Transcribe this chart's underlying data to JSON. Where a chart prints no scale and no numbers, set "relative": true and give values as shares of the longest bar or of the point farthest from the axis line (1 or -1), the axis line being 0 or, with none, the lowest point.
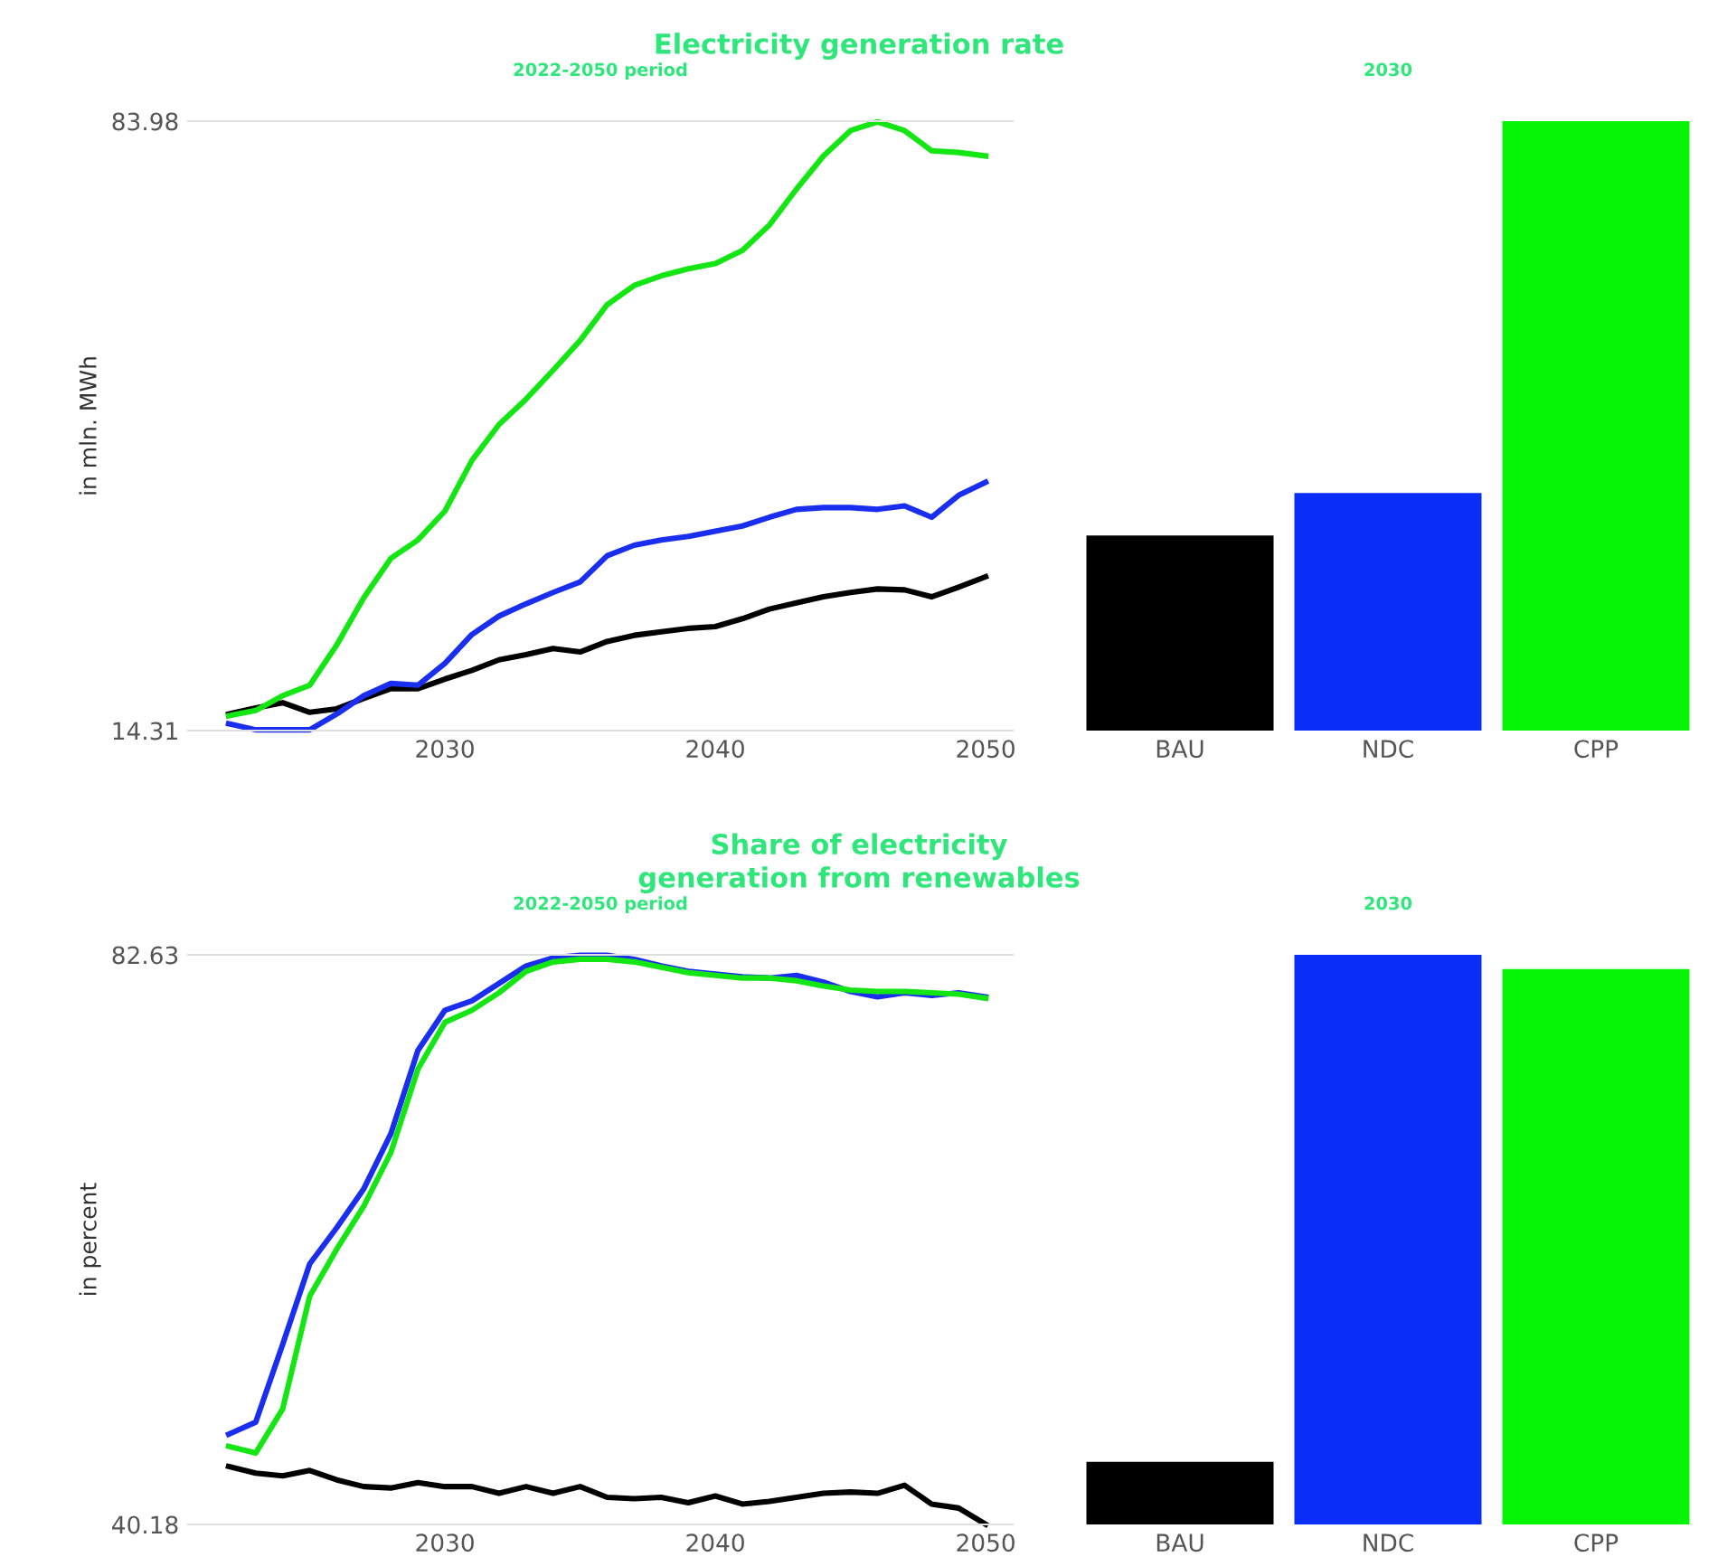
{
  "chart_data": [
    {
      "type": "line",
      "title": "Electricity generation rate",
      "subtitle": "2022-2050 period",
      "ylabel": "in mln. MWh",
      "x": [
        2022,
        2023,
        2024,
        2025,
        2026,
        2027,
        2028,
        2029,
        2030,
        2031,
        2032,
        2033,
        2034,
        2035,
        2036,
        2037,
        2038,
        2039,
        2040,
        2041,
        2042,
        2043,
        2044,
        2045,
        2046,
        2047,
        2048,
        2049,
        2050
      ],
      "xlim": [
        2020.5,
        2051
      ],
      "xticks": [
        2030,
        2040,
        2050
      ],
      "ylim": [
        14.31,
        83.98
      ],
      "yticks": [
        {
          "value": 14.31,
          "label": "14.31"
        },
        {
          "value": 83.98,
          "label": "83.98"
        }
      ],
      "series": [
        {
          "color": "#000000",
          "values": [
            16.2,
            16.9,
            17.5,
            16.4,
            16.8,
            18.0,
            19.1,
            19.1,
            20.2,
            21.2,
            22.4,
            23.0,
            23.7,
            23.3,
            24.5,
            25.2,
            25.6,
            26.0,
            26.2,
            27.1,
            28.2,
            28.9,
            29.6,
            30.1,
            30.5,
            30.4,
            29.6,
            30.7,
            31.9
          ]
        },
        {
          "color": "#1a2ef0",
          "values": [
            15.1,
            14.4,
            14.4,
            14.4,
            16.2,
            18.3,
            19.7,
            19.5,
            22.0,
            25.3,
            27.4,
            28.8,
            30.1,
            31.3,
            34.3,
            35.5,
            36.1,
            36.5,
            37.1,
            37.7,
            38.7,
            39.6,
            39.8,
            39.8,
            39.6,
            40.0,
            38.7,
            41.2,
            42.7
          ]
        },
        {
          "color": "#14e614",
          "values": [
            16.0,
            16.6,
            18.3,
            19.5,
            24.1,
            29.5,
            34.0,
            36.1,
            39.4,
            45.2,
            49.3,
            52.2,
            55.5,
            58.9,
            63.0,
            65.2,
            66.3,
            67.1,
            67.7,
            69.2,
            72.1,
            76.2,
            80.0,
            82.9,
            83.9,
            82.9,
            80.6,
            80.4,
            80.0
          ]
        }
      ]
    },
    {
      "type": "bar",
      "subtitle": "2030",
      "categories": [
        "BAU",
        "NDC",
        "CPP"
      ],
      "values": [
        0.32,
        0.39,
        1
      ],
      "colors": [
        "#000000",
        "#0a2ef5",
        "#05f505"
      ],
      "relative": true
    },
    {
      "type": "line",
      "title": "Share of electricity\ngeneration from renewables",
      "subtitle": "2022-2050 period",
      "ylabel": "in percent",
      "x": [
        2022,
        2023,
        2024,
        2025,
        2026,
        2027,
        2028,
        2029,
        2030,
        2031,
        2032,
        2033,
        2034,
        2035,
        2036,
        2037,
        2038,
        2039,
        2040,
        2041,
        2042,
        2043,
        2044,
        2045,
        2046,
        2047,
        2048,
        2049,
        2050
      ],
      "xlim": [
        2020.5,
        2051
      ],
      "xticks": [
        2030,
        2040,
        2050
      ],
      "ylim": [
        40.18,
        82.63
      ],
      "yticks": [
        {
          "value": 40.18,
          "label": "40.18"
        },
        {
          "value": 82.63,
          "label": "82.63"
        }
      ],
      "series": [
        {
          "color": "#000000",
          "values": [
            44.5,
            44.0,
            43.8,
            44.2,
            43.5,
            43.0,
            42.9,
            43.3,
            43.0,
            43.0,
            42.5,
            43.0,
            42.5,
            43.0,
            42.2,
            42.1,
            42.2,
            41.8,
            42.3,
            41.7,
            41.9,
            42.2,
            42.5,
            42.6,
            42.5,
            43.1,
            41.7,
            41.4,
            40.2
          ]
        },
        {
          "color": "#1a2ef0",
          "values": [
            46.9,
            47.8,
            53.6,
            59.6,
            62.3,
            65.2,
            69.3,
            75.5,
            78.5,
            79.2,
            80.5,
            81.8,
            82.4,
            82.6,
            82.6,
            82.3,
            81.8,
            81.4,
            81.2,
            81.0,
            80.9,
            81.1,
            80.6,
            79.9,
            79.5,
            79.8,
            79.6,
            79.8,
            79.5
          ]
        },
        {
          "color": "#14e614",
          "values": [
            46.0,
            45.5,
            48.8,
            57.2,
            60.7,
            63.9,
            67.9,
            74.1,
            77.6,
            78.5,
            79.8,
            81.4,
            82.1,
            82.3,
            82.3,
            82.1,
            81.7,
            81.3,
            81.1,
            80.9,
            80.9,
            80.7,
            80.3,
            80.0,
            79.9,
            79.9,
            79.8,
            79.7,
            79.4
          ]
        }
      ]
    },
    {
      "type": "bar",
      "subtitle": "2030",
      "categories": [
        "BAU",
        "NDC",
        "CPP"
      ],
      "values": [
        0.11,
        1,
        0.975
      ],
      "colors": [
        "#000000",
        "#0a2ef5",
        "#05f505"
      ],
      "relative": true
    }
  ]
}
